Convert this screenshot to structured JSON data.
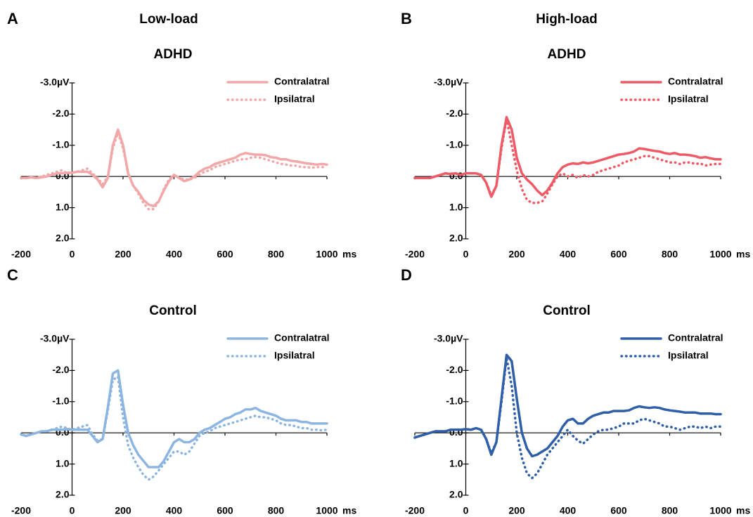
{
  "column_titles": [
    "Low-load",
    "High-load"
  ],
  "chart_data": [
    {
      "type": "line",
      "panel": "A",
      "title": "ADHD",
      "xlabel": "ms",
      "y_inverted": true,
      "xlim": [
        -200,
        1000
      ],
      "xticks": [
        -200,
        0,
        200,
        400,
        600,
        800,
        1000
      ],
      "ylim": [
        -3,
        2
      ],
      "yticks": [
        {
          "value": -3,
          "label": "-3.0µV"
        },
        {
          "value": -2,
          "label": "-2.0"
        },
        {
          "value": -1,
          "label": "-1.0"
        },
        {
          "value": 0,
          "label": "0.0"
        },
        {
          "value": 1,
          "label": "1.0"
        },
        {
          "value": 2,
          "label": "2.0"
        }
      ],
      "x": [
        -200,
        -180,
        -160,
        -140,
        -120,
        -100,
        -80,
        -60,
        -40,
        -20,
        0,
        20,
        40,
        60,
        80,
        100,
        120,
        140,
        160,
        180,
        200,
        220,
        240,
        260,
        280,
        300,
        320,
        340,
        360,
        380,
        400,
        420,
        440,
        460,
        480,
        500,
        520,
        540,
        560,
        580,
        600,
        620,
        640,
        660,
        680,
        700,
        720,
        740,
        760,
        780,
        800,
        820,
        840,
        860,
        880,
        900,
        920,
        940,
        960,
        980,
        1000
      ],
      "series": [
        {
          "name": "Contralatral",
          "color": "#f2a7a9",
          "style": "solid",
          "values": [
            0.05,
            0.05,
            0.03,
            0.05,
            0.03,
            0.0,
            -0.05,
            -0.1,
            -0.1,
            -0.12,
            -0.12,
            -0.15,
            -0.15,
            -0.15,
            -0.05,
            0.1,
            0.35,
            0.05,
            -1.0,
            -1.5,
            -1.0,
            -0.1,
            0.3,
            0.5,
            0.75,
            0.9,
            0.95,
            0.8,
            0.45,
            0.15,
            -0.05,
            0.05,
            0.15,
            0.1,
            0.0,
            -0.15,
            -0.25,
            -0.3,
            -0.4,
            -0.45,
            -0.5,
            -0.55,
            -0.6,
            -0.7,
            -0.75,
            -0.72,
            -0.7,
            -0.7,
            -0.68,
            -0.62,
            -0.6,
            -0.55,
            -0.55,
            -0.5,
            -0.48,
            -0.45,
            -0.42,
            -0.4,
            -0.38,
            -0.4,
            -0.38
          ]
        },
        {
          "name": "Ipsilatral",
          "color": "#f2a7a9",
          "style": "dotted",
          "values": [
            0.05,
            0.05,
            0.03,
            0.05,
            0.0,
            -0.05,
            -0.1,
            -0.15,
            -0.2,
            -0.1,
            -0.12,
            -0.15,
            -0.2,
            -0.25,
            -0.1,
            0.05,
            0.25,
            0.0,
            -0.9,
            -1.4,
            -0.9,
            -0.1,
            0.3,
            0.55,
            0.85,
            1.05,
            1.05,
            0.8,
            0.4,
            0.1,
            -0.05,
            0.05,
            0.1,
            0.1,
            0.05,
            -0.05,
            -0.15,
            -0.2,
            -0.3,
            -0.35,
            -0.4,
            -0.45,
            -0.5,
            -0.55,
            -0.55,
            -0.6,
            -0.62,
            -0.6,
            -0.55,
            -0.5,
            -0.45,
            -0.4,
            -0.38,
            -0.35,
            -0.35,
            -0.3,
            -0.3,
            -0.28,
            -0.3,
            -0.3,
            -0.3
          ]
        }
      ]
    },
    {
      "type": "line",
      "panel": "B",
      "title": "ADHD",
      "xlabel": "ms",
      "y_inverted": true,
      "xlim": [
        -200,
        1000
      ],
      "xticks": [
        -200,
        0,
        200,
        400,
        600,
        800,
        1000
      ],
      "ylim": [
        -3,
        2
      ],
      "yticks": [
        {
          "value": -3,
          "label": "-3.0µV"
        },
        {
          "value": -2,
          "label": "-2.0"
        },
        {
          "value": -1,
          "label": "-1.0"
        },
        {
          "value": 0,
          "label": "0.0"
        },
        {
          "value": 1,
          "label": "1.0"
        },
        {
          "value": 2,
          "label": "2.0"
        }
      ],
      "x": [
        -200,
        -180,
        -160,
        -140,
        -120,
        -100,
        -80,
        -60,
        -40,
        -20,
        0,
        20,
        40,
        60,
        80,
        100,
        120,
        140,
        160,
        180,
        200,
        220,
        240,
        260,
        280,
        300,
        320,
        340,
        360,
        380,
        400,
        420,
        440,
        460,
        480,
        500,
        520,
        540,
        560,
        580,
        600,
        620,
        640,
        660,
        680,
        700,
        720,
        740,
        760,
        780,
        800,
        820,
        840,
        860,
        880,
        900,
        920,
        940,
        960,
        980,
        1000
      ],
      "series": [
        {
          "name": "Contralatral",
          "color": "#ee5a66",
          "style": "solid",
          "values": [
            0.05,
            0.05,
            0.05,
            0.05,
            0.0,
            -0.05,
            -0.1,
            -0.08,
            -0.1,
            -0.05,
            -0.1,
            -0.1,
            -0.1,
            -0.05,
            0.2,
            0.65,
            0.3,
            -1.0,
            -1.9,
            -1.5,
            -0.6,
            -0.1,
            0.1,
            0.25,
            0.45,
            0.6,
            0.45,
            0.2,
            -0.1,
            -0.3,
            -0.38,
            -0.42,
            -0.4,
            -0.45,
            -0.42,
            -0.45,
            -0.5,
            -0.55,
            -0.6,
            -0.65,
            -0.7,
            -0.72,
            -0.75,
            -0.8,
            -0.9,
            -0.88,
            -0.85,
            -0.82,
            -0.8,
            -0.75,
            -0.72,
            -0.75,
            -0.7,
            -0.7,
            -0.68,
            -0.65,
            -0.6,
            -0.62,
            -0.58,
            -0.55,
            -0.55
          ]
        },
        {
          "name": "Ipsilatral",
          "color": "#ee5a66",
          "style": "dotted",
          "values": [
            0.05,
            0.05,
            0.05,
            0.05,
            0.0,
            -0.05,
            -0.1,
            -0.08,
            -0.1,
            -0.05,
            -0.1,
            -0.1,
            -0.1,
            -0.05,
            0.2,
            0.6,
            0.3,
            -0.9,
            -1.85,
            -1.0,
            -0.2,
            0.4,
            0.75,
            0.85,
            0.85,
            0.8,
            0.55,
            0.25,
            0.0,
            -0.1,
            0.0,
            -0.05,
            0.05,
            -0.05,
            0.0,
            -0.05,
            -0.15,
            -0.2,
            -0.25,
            -0.3,
            -0.35,
            -0.45,
            -0.5,
            -0.55,
            -0.6,
            -0.65,
            -0.65,
            -0.6,
            -0.55,
            -0.5,
            -0.45,
            -0.45,
            -0.4,
            -0.45,
            -0.45,
            -0.4,
            -0.42,
            -0.35,
            -0.38,
            -0.4,
            -0.4
          ]
        }
      ]
    },
    {
      "type": "line",
      "panel": "C",
      "title": "Control",
      "xlabel": "ms",
      "y_inverted": true,
      "xlim": [
        -200,
        1000
      ],
      "xticks": [
        -200,
        0,
        200,
        400,
        600,
        800,
        1000
      ],
      "ylim": [
        -3,
        2
      ],
      "yticks": [
        {
          "value": -3,
          "label": "-3.0µV"
        },
        {
          "value": -2,
          "label": "-2.0"
        },
        {
          "value": -1,
          "label": "-1.0"
        },
        {
          "value": 0,
          "label": "0.0"
        },
        {
          "value": 1,
          "label": "1.0"
        },
        {
          "value": 2,
          "label": "2.0"
        }
      ],
      "x": [
        -200,
        -180,
        -160,
        -140,
        -120,
        -100,
        -80,
        -60,
        -40,
        -20,
        0,
        20,
        40,
        60,
        80,
        100,
        120,
        140,
        160,
        180,
        200,
        220,
        240,
        260,
        280,
        300,
        320,
        340,
        360,
        380,
        400,
        420,
        440,
        460,
        480,
        500,
        520,
        540,
        560,
        580,
        600,
        620,
        640,
        660,
        680,
        700,
        720,
        740,
        760,
        780,
        800,
        820,
        840,
        860,
        880,
        900,
        920,
        940,
        960,
        980,
        1000
      ],
      "series": [
        {
          "name": "Contralatral",
          "color": "#8db5e2",
          "style": "solid",
          "values": [
            0.05,
            0.1,
            0.05,
            0.0,
            -0.05,
            -0.05,
            -0.1,
            -0.1,
            -0.1,
            -0.12,
            -0.1,
            -0.1,
            -0.1,
            -0.1,
            0.1,
            0.3,
            0.2,
            -0.8,
            -1.9,
            -2.0,
            -0.9,
            0.0,
            0.4,
            0.7,
            0.9,
            1.1,
            1.1,
            1.1,
            0.9,
            0.6,
            0.3,
            0.2,
            0.3,
            0.3,
            0.2,
            0.0,
            -0.1,
            -0.15,
            -0.25,
            -0.35,
            -0.45,
            -0.5,
            -0.6,
            -0.65,
            -0.75,
            -0.75,
            -0.8,
            -0.7,
            -0.65,
            -0.6,
            -0.55,
            -0.45,
            -0.4,
            -0.4,
            -0.4,
            -0.35,
            -0.35,
            -0.3,
            -0.3,
            -0.3,
            -0.3
          ]
        },
        {
          "name": "Ipsilatral",
          "color": "#8db5e2",
          "style": "dotted",
          "values": [
            0.05,
            0.1,
            0.05,
            0.0,
            -0.05,
            -0.05,
            -0.1,
            -0.15,
            -0.2,
            -0.15,
            -0.1,
            -0.15,
            -0.2,
            -0.25,
            0.05,
            0.25,
            0.2,
            -0.7,
            -1.7,
            -1.8,
            -0.5,
            0.4,
            0.8,
            1.1,
            1.35,
            1.5,
            1.4,
            1.2,
            1.0,
            0.8,
            0.6,
            0.6,
            0.7,
            0.6,
            0.35,
            0.1,
            0.0,
            -0.05,
            -0.15,
            -0.2,
            -0.25,
            -0.3,
            -0.35,
            -0.4,
            -0.45,
            -0.5,
            -0.55,
            -0.5,
            -0.5,
            -0.45,
            -0.4,
            -0.3,
            -0.25,
            -0.25,
            -0.2,
            -0.15,
            -0.15,
            -0.1,
            -0.1,
            -0.08,
            -0.1
          ]
        }
      ]
    },
    {
      "type": "line",
      "panel": "D",
      "title": "Control",
      "xlabel": "ms",
      "y_inverted": true,
      "xlim": [
        -200,
        1000
      ],
      "xticks": [
        -200,
        0,
        200,
        400,
        600,
        800,
        1000
      ],
      "ylim": [
        -3,
        2
      ],
      "yticks": [
        {
          "value": -3,
          "label": "-3.0µV"
        },
        {
          "value": -2,
          "label": "-2.0"
        },
        {
          "value": -1,
          "label": "-1.0"
        },
        {
          "value": 0,
          "label": "0.0"
        },
        {
          "value": 1,
          "label": "1.0"
        },
        {
          "value": 2,
          "label": "2.0"
        }
      ],
      "x": [
        -200,
        -180,
        -160,
        -140,
        -120,
        -100,
        -80,
        -60,
        -40,
        -20,
        0,
        20,
        40,
        60,
        80,
        100,
        120,
        140,
        160,
        180,
        200,
        220,
        240,
        260,
        280,
        300,
        320,
        340,
        360,
        380,
        400,
        420,
        440,
        460,
        480,
        500,
        520,
        540,
        560,
        580,
        600,
        620,
        640,
        660,
        680,
        700,
        720,
        740,
        760,
        780,
        800,
        820,
        840,
        860,
        880,
        900,
        920,
        940,
        960,
        980,
        1000
      ],
      "series": [
        {
          "name": "Contralatral",
          "color": "#2e5fa8",
          "style": "solid",
          "values": [
            0.15,
            0.1,
            0.05,
            0.0,
            -0.05,
            -0.05,
            -0.05,
            -0.1,
            -0.1,
            -0.1,
            -0.12,
            -0.1,
            -0.15,
            -0.1,
            0.2,
            0.7,
            0.3,
            -1.1,
            -2.5,
            -2.3,
            -1.1,
            0.0,
            0.5,
            0.75,
            0.7,
            0.6,
            0.5,
            0.3,
            0.1,
            -0.2,
            -0.4,
            -0.45,
            -0.3,
            -0.3,
            -0.45,
            -0.55,
            -0.6,
            -0.65,
            -0.65,
            -0.7,
            -0.7,
            -0.7,
            -0.72,
            -0.8,
            -0.85,
            -0.82,
            -0.8,
            -0.82,
            -0.8,
            -0.75,
            -0.72,
            -0.7,
            -0.68,
            -0.65,
            -0.65,
            -0.65,
            -0.62,
            -0.62,
            -0.62,
            -0.6,
            -0.6
          ]
        },
        {
          "name": "Ipsilatral",
          "color": "#2e5fa8",
          "style": "dotted",
          "values": [
            0.15,
            0.1,
            0.05,
            0.0,
            -0.05,
            -0.05,
            -0.05,
            -0.1,
            -0.1,
            -0.1,
            -0.12,
            -0.1,
            -0.15,
            -0.1,
            0.2,
            0.65,
            0.3,
            -1.0,
            -2.4,
            -1.5,
            0.0,
            0.8,
            1.3,
            1.45,
            1.3,
            1.0,
            0.7,
            0.5,
            0.3,
            0.1,
            -0.1,
            0.1,
            0.25,
            0.35,
            0.2,
            0.05,
            -0.05,
            -0.1,
            -0.1,
            -0.15,
            -0.2,
            -0.3,
            -0.3,
            -0.3,
            -0.4,
            -0.45,
            -0.4,
            -0.35,
            -0.3,
            -0.2,
            -0.2,
            -0.15,
            -0.1,
            -0.15,
            -0.2,
            -0.2,
            -0.15,
            -0.2,
            -0.15,
            -0.2,
            -0.2
          ]
        }
      ]
    }
  ]
}
